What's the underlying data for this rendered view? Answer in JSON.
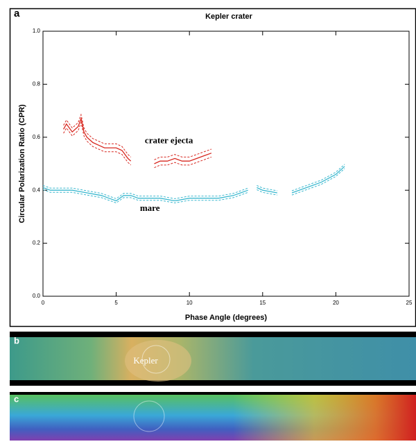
{
  "chart_data": {
    "type": "line",
    "panel_label": "a",
    "title": "Kepler crater",
    "x_label": "Phase Angle (degrees)",
    "y_label": "Circular Polarization Ratio (CPR)",
    "xlim": [
      0,
      25
    ],
    "ylim": [
      0,
      1
    ],
    "xticks": [
      0,
      5,
      10,
      15,
      20,
      25
    ],
    "yticks": [
      {
        "value": 0,
        "label": "0.0"
      },
      0.2,
      0.4,
      0.6,
      0.8,
      {
        "value": 1,
        "label": "1.0"
      }
    ],
    "series": [
      {
        "name": "crater ejecta",
        "color": "#d7261e",
        "error": 0.015,
        "x": [
          1.4,
          1.6,
          2.0,
          2.4,
          2.6,
          2.8,
          3.0,
          3.4,
          3.8,
          4.2,
          4.6,
          5.0,
          5.4,
          5.8,
          6.0,
          6.8,
          7.6,
          8.0,
          8.5,
          9.0,
          9.5,
          10.0,
          10.5,
          11.0,
          11.5
        ],
        "values": [
          0.63,
          0.65,
          0.62,
          0.64,
          0.67,
          0.62,
          0.6,
          0.58,
          0.57,
          0.56,
          0.56,
          0.56,
          0.55,
          0.52,
          0.51,
          null,
          0.5,
          0.51,
          0.51,
          0.52,
          0.51,
          0.51,
          0.52,
          0.53,
          0.54
        ]
      },
      {
        "name": "mare",
        "color": "#3bb8cf",
        "error": 0.008,
        "x": [
          0,
          0.5,
          1,
          2,
          3,
          4,
          4.5,
          5,
          5.5,
          6,
          6.5,
          7,
          8,
          9,
          10,
          11,
          12,
          13,
          13.5,
          14,
          14.3,
          14.6,
          15,
          16,
          16.5,
          17,
          18,
          19,
          20,
          20.6
        ],
        "values": [
          0.41,
          0.4,
          0.4,
          0.4,
          0.39,
          0.38,
          0.37,
          0.36,
          0.38,
          0.38,
          0.37,
          0.37,
          0.37,
          0.36,
          0.37,
          0.37,
          0.37,
          0.38,
          0.39,
          0.4,
          null,
          0.41,
          0.4,
          0.39,
          null,
          0.39,
          0.41,
          0.43,
          0.46,
          0.49
        ]
      }
    ]
  },
  "panel_b": {
    "label": "b",
    "caption": "Kepler"
  },
  "panel_c": {
    "label": "c"
  }
}
